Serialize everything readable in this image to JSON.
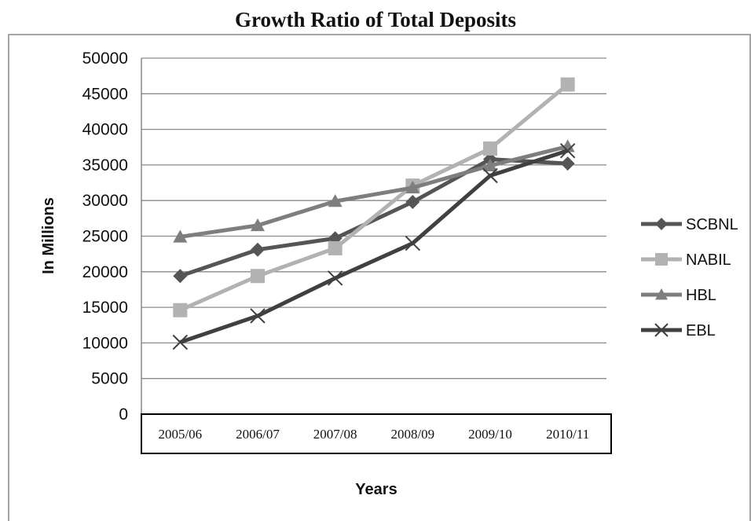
{
  "chart_data": {
    "type": "line",
    "title": "Growth Ratio of Total Deposits",
    "xlabel": "Years",
    "ylabel": "In Millions",
    "categories": [
      "2005/06",
      "2006/07",
      "2007/08",
      "2008/09",
      "2009/10",
      "2010/11"
    ],
    "ylim": [
      0,
      50000
    ],
    "yticks": [
      0,
      5000,
      10000,
      15000,
      20000,
      25000,
      30000,
      35000,
      40000,
      45000,
      50000
    ],
    "grid": true,
    "legend_position": "right",
    "series": [
      {
        "name": "SCBNL",
        "marker": "diamond",
        "color": "#555555",
        "values": [
          19400,
          23100,
          24700,
          29800,
          35800,
          35200
        ]
      },
      {
        "name": "NABIL",
        "marker": "square",
        "color": "#b2b2b2",
        "values": [
          14600,
          19400,
          23300,
          32100,
          37300,
          46300
        ]
      },
      {
        "name": "HBL",
        "marker": "triangle",
        "color": "#7e7e7e",
        "values": [
          24900,
          26500,
          29900,
          31800,
          34900,
          37600
        ]
      },
      {
        "name": "EBL",
        "marker": "x",
        "color": "#404040",
        "values": [
          10100,
          13800,
          19100,
          24000,
          33500,
          37000
        ]
      }
    ]
  }
}
